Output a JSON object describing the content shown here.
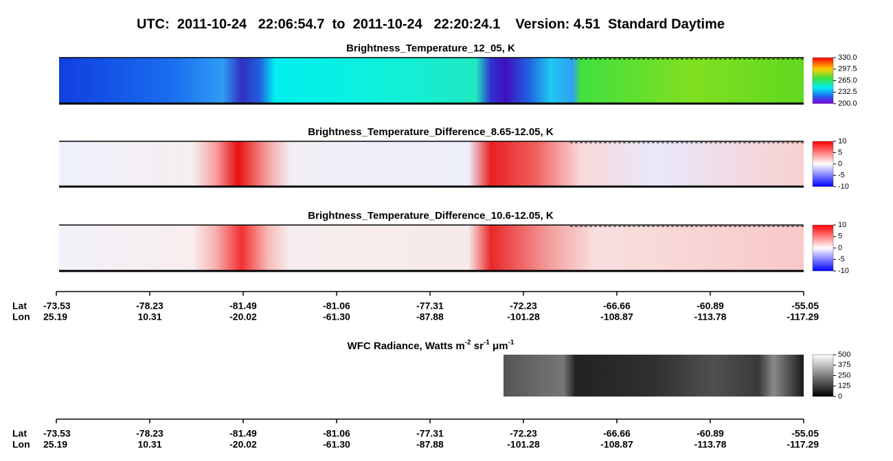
{
  "header": {
    "title": "UTC:  2011-10-24   22:06:54.7  to  2011-10-24   22:20:24.1    Version: 4.51  Standard Daytime"
  },
  "panels": [
    {
      "title": "Brightness_Temperature_12_05, K",
      "colorbar": [
        "330.0",
        "297.5",
        "265.0",
        "232.5",
        "200.0"
      ]
    },
    {
      "title": "Brightness_Temperature_Difference_8.65-12.05, K",
      "colorbar": [
        "10",
        "5",
        "0",
        "-5",
        "-10"
      ]
    },
    {
      "title": "Brightness_Temperature_Difference_10.6-12.05, K",
      "colorbar": [
        "10",
        "5",
        "0",
        "-5",
        "-10"
      ]
    },
    {
      "title": [
        "WFC Radiance, Watts m",
        "-2",
        " sr",
        "-1",
        " μm",
        "-1"
      ],
      "colorbar": [
        "500",
        "375",
        "250",
        "125",
        "0"
      ]
    }
  ],
  "axes": [
    {
      "lat_label": "Lat",
      "lon_label": "Lon",
      "lat": [
        "-73.53",
        "-78.23",
        "-81.49",
        "-81.06",
        "-77.31",
        "-72.23",
        "-66.66",
        "-60.89",
        "-55.05"
      ],
      "lon": [
        "25.19",
        "10.31",
        "-20.02",
        "-61.30",
        "-87.88",
        "-101.28",
        "-108.87",
        "-113.78",
        "-117.29"
      ]
    },
    {
      "lat_label": "Lat",
      "lon_label": "Lon",
      "lat": [
        "-73.53",
        "-78.23",
        "-81.49",
        "-81.06",
        "-77.31",
        "-72.23",
        "-66.66",
        "-60.89",
        "-55.05"
      ],
      "lon": [
        "25.19",
        "10.31",
        "-20.02",
        "-61.30",
        "-87.88",
        "-101.28",
        "-108.87",
        "-113.78",
        "-117.29"
      ]
    }
  ]
}
